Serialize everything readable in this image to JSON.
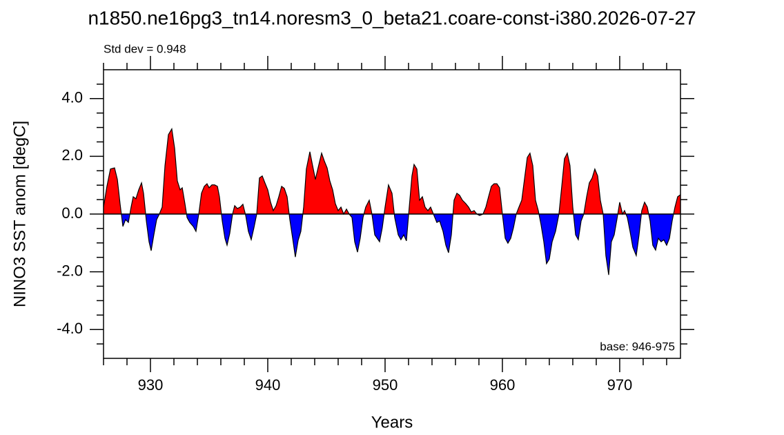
{
  "chart_data": {
    "type": "area",
    "title": "n1850.ne16pg3_tn14.noresm3_0_beta21.coare-const-i380.2026-07-27",
    "subtitle": "Std dev = 0.948",
    "annotation": "base: 946-975",
    "xlabel": "Years",
    "ylabel": "NINO3 SST anom [degC]",
    "xlim": [
      926,
      975.18
    ],
    "ylim": [
      -5,
      5
    ],
    "xticks": [
      930,
      940,
      950,
      960,
      970
    ],
    "xminorticks": [
      926,
      928,
      932,
      934,
      936,
      938,
      942,
      944,
      946,
      948,
      952,
      954,
      956,
      958,
      962,
      964,
      966,
      968,
      972,
      974
    ],
    "yticks": [
      {
        "value": -4,
        "label": "-4.0"
      },
      {
        "value": -2,
        "label": "-2.0"
      },
      {
        "value": 0,
        "label": "0.0"
      },
      {
        "value": 2,
        "label": "2.0"
      },
      {
        "value": 4,
        "label": "4.0"
      }
    ],
    "yminorticks": [
      -4.5,
      -3.5,
      -3,
      -2.5,
      -1.5,
      -1,
      -0.5,
      0.5,
      1,
      1.5,
      2.5,
      3,
      3.5,
      4.5
    ],
    "positive_color": "#ff0000",
    "negative_color": "#0000ff",
    "line_color": "#000000",
    "x": [
      926.0,
      926.29,
      926.59,
      926.94,
      927.18,
      927.41,
      927.65,
      927.88,
      928.12,
      928.35,
      928.53,
      928.76,
      929.0,
      929.24,
      929.41,
      929.65,
      929.88,
      930.06,
      930.29,
      930.53,
      930.76,
      931.0,
      931.24,
      931.53,
      931.82,
      932.06,
      932.29,
      932.53,
      932.71,
      932.94,
      933.12,
      933.35,
      933.65,
      933.88,
      934.12,
      934.35,
      934.59,
      934.82,
      935.0,
      935.24,
      935.47,
      935.71,
      935.88,
      936.12,
      936.35,
      936.53,
      936.76,
      937.0,
      937.18,
      937.41,
      937.65,
      937.88,
      938.12,
      938.35,
      938.59,
      938.82,
      939.06,
      939.29,
      939.53,
      939.76,
      940.0,
      940.24,
      940.47,
      940.71,
      940.94,
      941.18,
      941.41,
      941.65,
      941.88,
      942.12,
      942.35,
      942.59,
      942.82,
      943.06,
      943.29,
      943.59,
      943.82,
      944.06,
      944.29,
      944.59,
      944.82,
      945.06,
      945.29,
      945.53,
      945.76,
      946.0,
      946.24,
      946.47,
      946.71,
      946.94,
      947.18,
      947.41,
      947.65,
      947.88,
      948.12,
      948.35,
      948.65,
      948.88,
      949.12,
      949.53,
      949.76,
      950.0,
      950.29,
      950.59,
      950.82,
      951.12,
      951.35,
      951.59,
      951.82,
      952.06,
      952.29,
      952.47,
      952.71,
      952.94,
      953.18,
      953.41,
      953.65,
      953.88,
      954.12,
      954.41,
      954.65,
      954.94,
      955.18,
      955.41,
      955.65,
      955.88,
      956.12,
      956.35,
      956.59,
      956.88,
      957.12,
      957.35,
      957.59,
      957.82,
      958.06,
      958.35,
      958.59,
      958.82,
      959.06,
      959.29,
      959.53,
      959.76,
      960.0,
      960.24,
      960.47,
      960.71,
      960.94,
      961.18,
      961.41,
      961.65,
      961.88,
      962.12,
      962.35,
      962.59,
      962.82,
      963.06,
      963.29,
      963.53,
      963.76,
      964.0,
      964.24,
      964.53,
      964.82,
      965.06,
      965.29,
      965.53,
      965.76,
      966.0,
      966.24,
      966.47,
      966.71,
      966.94,
      967.18,
      967.41,
      967.65,
      967.88,
      968.12,
      968.35,
      968.59,
      968.82,
      969.06,
      969.29,
      969.53,
      969.76,
      970.0,
      970.24,
      970.41,
      970.65,
      970.88,
      971.12,
      971.41,
      971.65,
      971.88,
      972.12,
      972.35,
      972.59,
      972.82,
      973.06,
      973.29,
      973.53,
      973.76,
      974.0,
      974.24,
      974.47,
      974.71,
      974.94,
      975.18
    ],
    "values": [
      0.24,
      0.96,
      1.56,
      1.6,
      1.2,
      0.36,
      -0.43,
      -0.19,
      -0.29,
      0.24,
      0.6,
      0.53,
      0.84,
      1.08,
      0.72,
      -0.24,
      -0.96,
      -1.27,
      -0.72,
      -0.19,
      0.0,
      0.24,
      1.68,
      2.75,
      2.95,
      2.28,
      1.15,
      0.84,
      0.91,
      0.36,
      -0.12,
      -0.29,
      -0.43,
      -0.6,
      0.0,
      0.72,
      0.96,
      1.05,
      0.91,
      1.01,
      1.01,
      0.96,
      0.6,
      -0.24,
      -0.84,
      -1.08,
      -0.67,
      0.0,
      0.29,
      0.19,
      0.24,
      0.34,
      -0.05,
      -0.6,
      -0.89,
      -0.48,
      0.0,
      1.25,
      1.32,
      1.08,
      0.84,
      0.41,
      0.12,
      0.29,
      0.6,
      0.96,
      0.89,
      0.6,
      -0.19,
      -0.84,
      -1.49,
      -0.91,
      -0.6,
      0.24,
      1.56,
      2.16,
      1.68,
      1.2,
      1.6,
      2.11,
      1.84,
      1.6,
      1.15,
      0.84,
      0.36,
      0.12,
      0.24,
      0.0,
      0.17,
      0.0,
      -0.12,
      -0.96,
      -1.32,
      -0.84,
      -0.12,
      0.24,
      0.48,
      0.0,
      -0.72,
      -0.96,
      -0.48,
      0.24,
      1.01,
      0.72,
      -0.12,
      -0.72,
      -0.89,
      -0.72,
      -0.93,
      0.24,
      1.32,
      1.72,
      1.56,
      0.48,
      0.6,
      0.24,
      0.12,
      0.24,
      0.0,
      -0.29,
      -0.24,
      -0.6,
      -1.08,
      -1.34,
      -0.72,
      0.48,
      0.72,
      0.65,
      0.48,
      0.36,
      0.24,
      0.07,
      0.12,
      0.0,
      -0.05,
      0.0,
      0.24,
      0.6,
      0.96,
      1.05,
      1.05,
      0.91,
      0.0,
      -0.84,
      -1.01,
      -0.84,
      -0.48,
      0.0,
      0.24,
      0.48,
      1.2,
      1.96,
      2.11,
      1.68,
      0.48,
      0.12,
      -0.36,
      -0.96,
      -1.72,
      -1.56,
      -0.96,
      -0.6,
      0.0,
      0.96,
      1.92,
      2.11,
      1.68,
      0.24,
      -0.72,
      -0.89,
      -0.24,
      0.0,
      0.6,
      1.08,
      1.25,
      1.56,
      1.32,
      0.48,
      0.0,
      -1.44,
      -2.11,
      -0.96,
      -0.72,
      -0.19,
      0.41,
      0.0,
      0.12,
      -0.12,
      -0.6,
      -1.15,
      -1.44,
      -0.72,
      0.12,
      0.41,
      0.24,
      -0.24,
      -1.08,
      -1.25,
      -0.84,
      -0.96,
      -0.89,
      -1.08,
      -0.84,
      -0.24,
      0.24,
      0.6,
      0.67
    ]
  }
}
